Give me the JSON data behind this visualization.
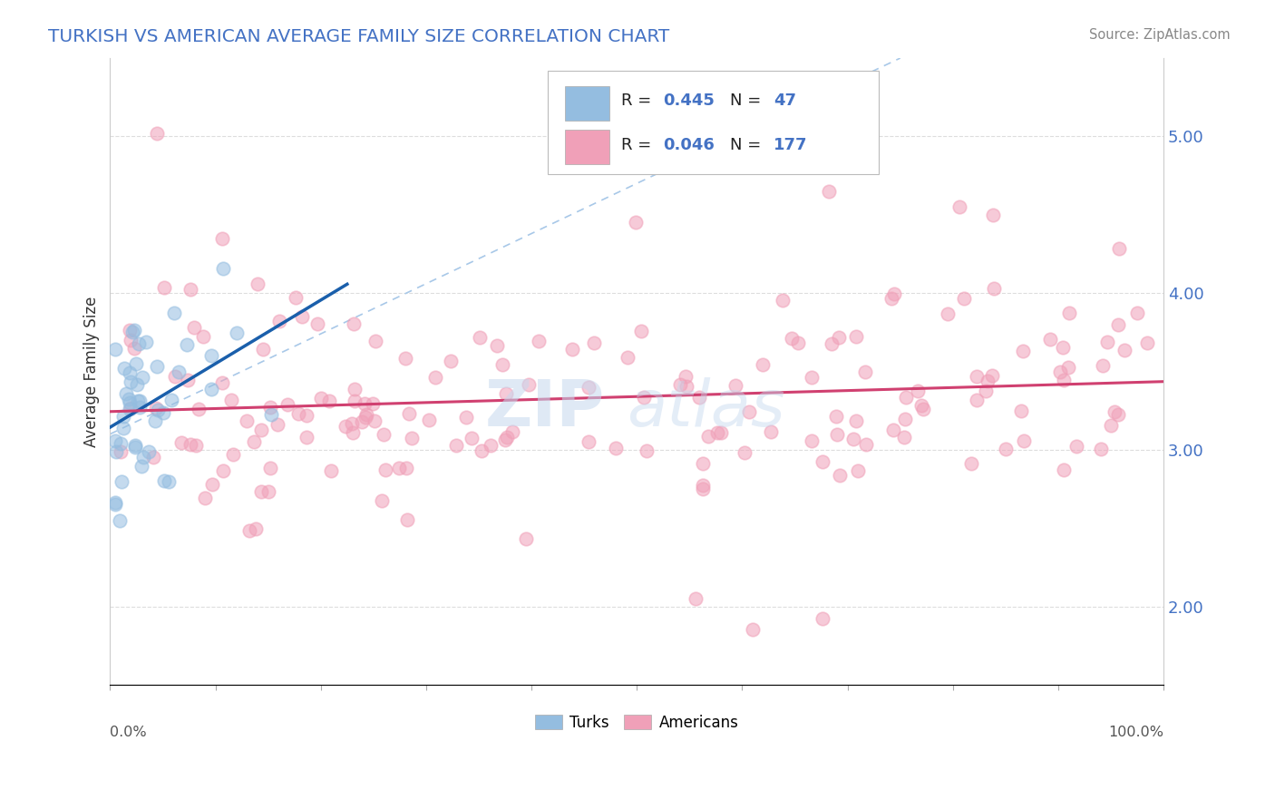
{
  "title": "TURKISH VS AMERICAN AVERAGE FAMILY SIZE CORRELATION CHART",
  "source": "Source: ZipAtlas.com",
  "ylabel": "Average Family Size",
  "yticks_right": [
    2.0,
    3.0,
    4.0,
    5.0
  ],
  "xlim": [
    0.0,
    1.0
  ],
  "ylim": [
    1.5,
    5.5
  ],
  "legend_turks_r": "0.445",
  "legend_turks_n": "47",
  "legend_americans_r": "0.046",
  "legend_americans_n": "177",
  "legend_label_turks": "Turks",
  "legend_label_americans": "Americans",
  "turk_color": "#94BDE0",
  "american_color": "#F0A0B8",
  "turk_line_color": "#1A5FAB",
  "american_line_color": "#D04070",
  "dashed_line_color": "#A8C8E8",
  "watermark_line1": "ZIP",
  "watermark_line2": "atlas",
  "background_color": "#FFFFFF",
  "grid_color": "#DDDDDD",
  "title_color": "#4472C4",
  "source_color": "#888888",
  "right_tick_color": "#4472C4",
  "legend_value_color": "#4472C4",
  "legend_label_color": "#222222"
}
